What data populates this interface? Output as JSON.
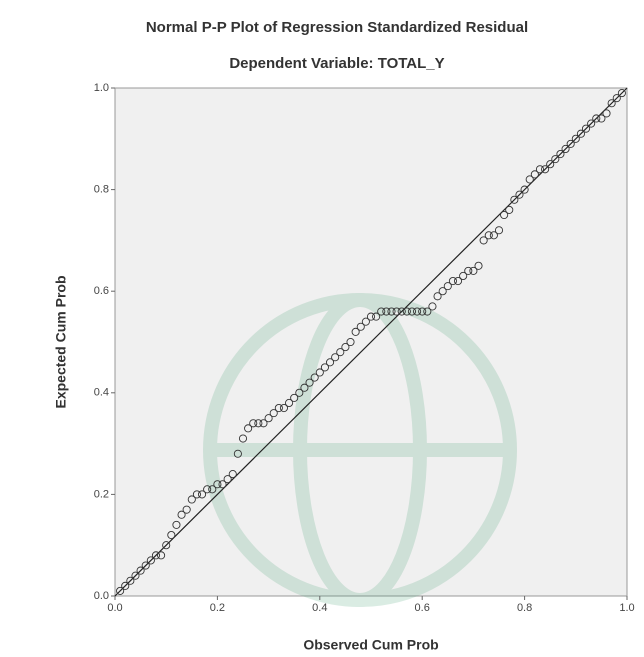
{
  "chart_data": {
    "type": "scatter",
    "title": "Normal P-P Plot of Regression Standardized Residual",
    "subtitle": "Dependent Variable: TOTAL_Y",
    "x_label": "Observed Cum Prob",
    "y_label": "Expected Cum Prob",
    "xlim": [
      0,
      1
    ],
    "ylim": [
      0,
      1
    ],
    "xticks": [
      {
        "value": 0,
        "label": "0.0"
      },
      0.2,
      0.4,
      0.6,
      0.8,
      {
        "value": 1,
        "label": "1.0"
      }
    ],
    "yticks": [
      {
        "value": 0,
        "label": "0.0"
      },
      0.2,
      0.4,
      0.6,
      0.8,
      {
        "value": 1,
        "label": "1.0"
      }
    ],
    "color": "#333333",
    "reference_line": {
      "x": [
        0,
        1
      ],
      "y": [
        0,
        1
      ]
    },
    "x": [
      0.01,
      0.02,
      0.03,
      0.04,
      0.05,
      0.06,
      0.07,
      0.08,
      0.09,
      0.1,
      0.11,
      0.12,
      0.13,
      0.14,
      0.15,
      0.16,
      0.17,
      0.18,
      0.19,
      0.2,
      0.21,
      0.22,
      0.23,
      0.24,
      0.25,
      0.26,
      0.27,
      0.28,
      0.29,
      0.3,
      0.31,
      0.32,
      0.33,
      0.34,
      0.35,
      0.36,
      0.37,
      0.38,
      0.39,
      0.4,
      0.41,
      0.42,
      0.43,
      0.44,
      0.45,
      0.46,
      0.47,
      0.48,
      0.49,
      0.5,
      0.51,
      0.52,
      0.53,
      0.54,
      0.55,
      0.56,
      0.57,
      0.58,
      0.59,
      0.6,
      0.61,
      0.62,
      0.63,
      0.64,
      0.65,
      0.66,
      0.67,
      0.68,
      0.69,
      0.7,
      0.71,
      0.72,
      0.73,
      0.74,
      0.75,
      0.76,
      0.77,
      0.78,
      0.79,
      0.8,
      0.81,
      0.82,
      0.83,
      0.84,
      0.85,
      0.86,
      0.87,
      0.88,
      0.89,
      0.9,
      0.91,
      0.92,
      0.93,
      0.94,
      0.95,
      0.96,
      0.97,
      0.98,
      0.99
    ],
    "values": [
      0.01,
      0.02,
      0.03,
      0.04,
      0.05,
      0.06,
      0.07,
      0.08,
      0.08,
      0.1,
      0.12,
      0.14,
      0.16,
      0.17,
      0.19,
      0.2,
      0.2,
      0.21,
      0.21,
      0.22,
      0.22,
      0.23,
      0.24,
      0.28,
      0.31,
      0.33,
      0.34,
      0.34,
      0.34,
      0.35,
      0.36,
      0.37,
      0.37,
      0.38,
      0.39,
      0.4,
      0.41,
      0.42,
      0.43,
      0.44,
      0.45,
      0.46,
      0.47,
      0.48,
      0.49,
      0.5,
      0.52,
      0.53,
      0.54,
      0.55,
      0.55,
      0.56,
      0.56,
      0.56,
      0.56,
      0.56,
      0.56,
      0.56,
      0.56,
      0.56,
      0.56,
      0.57,
      0.59,
      0.6,
      0.61,
      0.62,
      0.62,
      0.63,
      0.64,
      0.64,
      0.65,
      0.7,
      0.71,
      0.71,
      0.72,
      0.75,
      0.76,
      0.78,
      0.79,
      0.8,
      0.82,
      0.83,
      0.84,
      0.84,
      0.85,
      0.86,
      0.87,
      0.88,
      0.89,
      0.9,
      0.91,
      0.92,
      0.93,
      0.94,
      0.94,
      0.95,
      0.97,
      0.98,
      0.99
    ]
  }
}
